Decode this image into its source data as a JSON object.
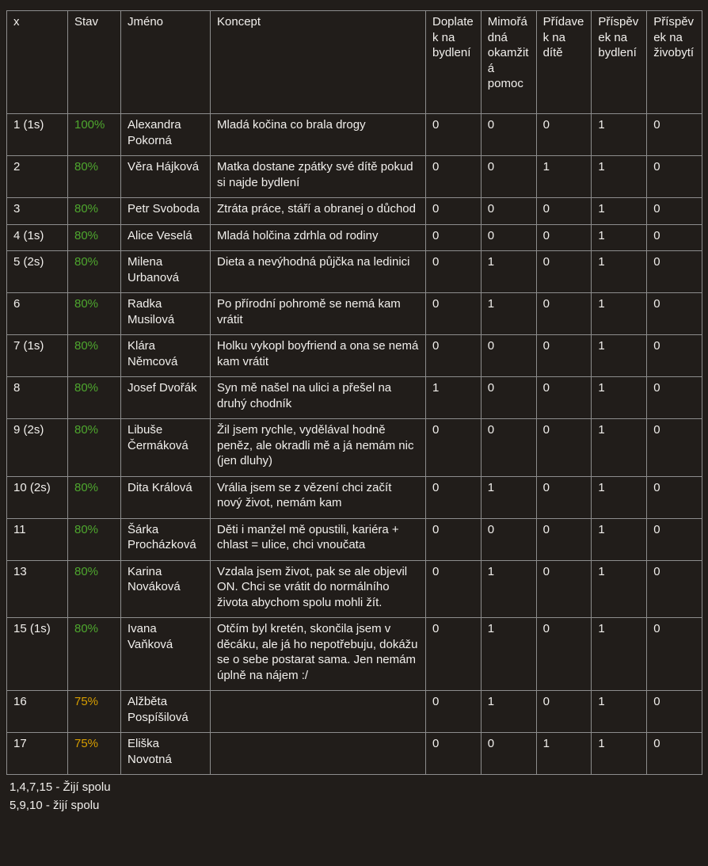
{
  "colors": {
    "green": "#4ea72e",
    "amber": "#d79e00",
    "background": "#211d1a",
    "grid": "#8d8d8d",
    "text": "#f1efec"
  },
  "table": {
    "columns": [
      "x",
      "Stav",
      "Jméno",
      "Koncept",
      "Doplatek na bydlení",
      "Mimořádná okamžitá pomoc",
      "Přídavek na dítě",
      "Příspěvek na bydlení",
      "Příspěvek na živobytí"
    ],
    "rows": [
      {
        "id": "1 (1s)",
        "stav": "100%",
        "stav_color": "green",
        "jmeno": "Alexandra Pokorná",
        "koncept": "Mladá kočina co brala drogy",
        "values": [
          "0",
          "0",
          "0",
          "1",
          "0"
        ]
      },
      {
        "id": "2",
        "stav": "80%",
        "stav_color": "green",
        "jmeno": "Věra Hájková",
        "koncept": "Matka dostane zpátky své dítě pokud si najde bydlení",
        "values": [
          "0",
          "0",
          "1",
          "1",
          "0"
        ]
      },
      {
        "id": "3",
        "stav": "80%",
        "stav_color": "green",
        "jmeno": "Petr Svoboda",
        "koncept": "Ztráta práce, stáří a obranej o důchod",
        "values": [
          "0",
          "0",
          "0",
          "1",
          "0"
        ]
      },
      {
        "id": "4 (1s)",
        "stav": "80%",
        "stav_color": "green",
        "jmeno": "Alice Veselá",
        "koncept": "Mladá holčina zdrhla od rodiny",
        "values": [
          "0",
          "0",
          "0",
          "1",
          "0"
        ]
      },
      {
        "id": "5 (2s)",
        "stav": "80%",
        "stav_color": "green",
        "jmeno": "Milena Urbanová",
        "koncept": "Dieta a nevýhodná půjčka na ledinici",
        "values": [
          "0",
          "1",
          "0",
          "1",
          "0"
        ]
      },
      {
        "id": "6",
        "stav": "80%",
        "stav_color": "green",
        "jmeno": "Radka Musilová",
        "koncept": "Po přírodní pohromě se nemá kam vrátit",
        "values": [
          "0",
          "1",
          "0",
          "1",
          "0"
        ]
      },
      {
        "id": "7 (1s)",
        "stav": "80%",
        "stav_color": "green",
        "jmeno": "Klára Němcová",
        "koncept": "Holku vykopl boyfriend a ona se nemá kam vrátit",
        "values": [
          "0",
          "0",
          "0",
          "1",
          "0"
        ]
      },
      {
        "id": "8",
        "stav": "80%",
        "stav_color": "green",
        "jmeno": "Josef Dvořák",
        "koncept": "Syn mě našel na ulici a přešel na druhý chodník",
        "values": [
          "1",
          "0",
          "0",
          "1",
          "0"
        ]
      },
      {
        "id": "9 (2s)",
        "stav": "80%",
        "stav_color": "green",
        "jmeno": "Libuše Čermáková",
        "koncept": "Žil jsem rychle, vydělával hodně peněz, ale okradli mě a já nemám nic (jen dluhy)",
        "values": [
          "0",
          "0",
          "0",
          "1",
          "0"
        ]
      },
      {
        "id": "10 (2s)",
        "stav": "80%",
        "stav_color": "green",
        "jmeno": "Dita Králová",
        "koncept": "Vrália jsem se z vězení chci začít nový život, nemám kam",
        "values": [
          "0",
          "1",
          "0",
          "1",
          "0"
        ]
      },
      {
        "id": "11",
        "stav": "80%",
        "stav_color": "green",
        "jmeno": "Šárka Procházková",
        "koncept": "Děti i manžel mě opustili, kariéra + chlast = ulice, chci vnoučata",
        "values": [
          "0",
          "0",
          "0",
          "1",
          "0"
        ]
      },
      {
        "id": "13",
        "stav": "80%",
        "stav_color": "green",
        "jmeno": "Karina Nováková",
        "koncept": "Vzdala jsem život, pak se ale objevil ON. Chci se vrátit do normálního života abychom spolu mohli žít.",
        "values": [
          "0",
          "1",
          "0",
          "1",
          "0"
        ]
      },
      {
        "id": "15 (1s)",
        "stav": "80%",
        "stav_color": "green",
        "jmeno": "Ivana Vaňková",
        "koncept": "Otčím byl kretén, skončila jsem v děcáku, ale já ho nepotřebuju, dokážu se o sebe postarat sama. Jen nemám úplně na nájem :/",
        "values": [
          "0",
          "1",
          "0",
          "1",
          "0"
        ]
      },
      {
        "id": "16",
        "stav": "75%",
        "stav_color": "amber",
        "jmeno": "Alžběta Pospíšilová",
        "koncept": "",
        "values": [
          "0",
          "1",
          "0",
          "1",
          "0"
        ]
      },
      {
        "id": "17",
        "stav": "75%",
        "stav_color": "amber",
        "jmeno": "Eliška Novotná",
        "koncept": "",
        "values": [
          "0",
          "0",
          "1",
          "1",
          "0"
        ]
      }
    ]
  },
  "footer": [
    "1,4,7,15 - Žijí spolu",
    "5,9,10 - žijí spolu"
  ]
}
